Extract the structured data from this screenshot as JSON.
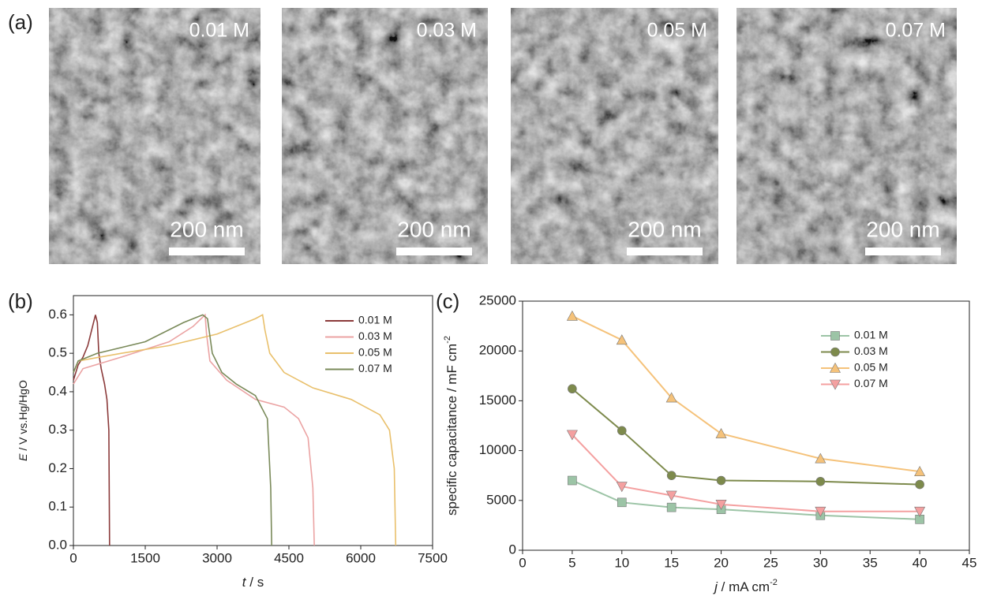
{
  "panel_a": {
    "label": "(a)",
    "images": [
      {
        "concentration": "0.01 M",
        "scale_bar": "200 nm"
      },
      {
        "concentration": "0.03 M",
        "scale_bar": "200 nm"
      },
      {
        "concentration": "0.05 M",
        "scale_bar": "200 nm"
      },
      {
        "concentration": "0.07 M",
        "scale_bar": "200 nm"
      }
    ]
  },
  "chart_data": [
    {
      "type": "line",
      "panel_label": "(b)",
      "xlabel": {
        "symbol": "t",
        "unit": " / s"
      },
      "ylabel": {
        "symbol": "E",
        "unit": " / V vs.Hg/HgO"
      },
      "xlim": [
        0,
        7500
      ],
      "xticks": [
        0,
        1500,
        3000,
        4500,
        6000,
        7500
      ],
      "ylim": [
        0,
        0.65
      ],
      "yticks": [
        {
          "value": 0,
          "label": "0.0"
        },
        0.1,
        0.2,
        0.3,
        0.4,
        0.5,
        0.6
      ],
      "legend": "top-right",
      "series": [
        {
          "name": "0.01 M",
          "color": "#8b3a3a",
          "x": [
            0,
            100,
            200,
            300,
            400,
            460,
            500,
            530,
            580,
            650,
            700,
            740,
            750,
            755
          ],
          "values": [
            0.43,
            0.47,
            0.49,
            0.52,
            0.57,
            0.6,
            0.58,
            0.5,
            0.46,
            0.42,
            0.38,
            0.3,
            0.1,
            0
          ]
        },
        {
          "name": "0.03 M",
          "color": "#eba3a3",
          "x": [
            0,
            200,
            1000,
            2000,
            2500,
            2750,
            2780,
            2850,
            3200,
            3800,
            4400,
            4700,
            4900,
            5000,
            5030
          ],
          "values": [
            0.42,
            0.46,
            0.49,
            0.53,
            0.57,
            0.6,
            0.55,
            0.48,
            0.43,
            0.38,
            0.36,
            0.33,
            0.28,
            0.15,
            0
          ]
        },
        {
          "name": "0.05 M",
          "color": "#e9c06c",
          "x": [
            0,
            100,
            1000,
            2000,
            3000,
            3800,
            3950,
            4000,
            4100,
            4400,
            5000,
            5800,
            6400,
            6600,
            6700,
            6730
          ],
          "values": [
            0.45,
            0.48,
            0.5,
            0.52,
            0.55,
            0.59,
            0.6,
            0.56,
            0.5,
            0.45,
            0.41,
            0.38,
            0.34,
            0.3,
            0.2,
            0
          ]
        },
        {
          "name": "0.07 M",
          "color": "#7a8a5a",
          "x": [
            0,
            100,
            500,
            1500,
            2300,
            2700,
            2800,
            2900,
            3100,
            3400,
            3800,
            4050,
            4120,
            4140
          ],
          "values": [
            0.45,
            0.48,
            0.5,
            0.53,
            0.58,
            0.6,
            0.59,
            0.5,
            0.45,
            0.42,
            0.39,
            0.33,
            0.15,
            0
          ]
        }
      ]
    },
    {
      "type": "line",
      "panel_label": "(c)",
      "xlabel": {
        "symbol": "j",
        "unit": " / mA cm",
        "sup": "-2"
      },
      "ylabel": {
        "symbol": "",
        "unit": "specific capacitance / mF cm",
        "sup": "-2"
      },
      "xlim": [
        0,
        45
      ],
      "xticks": [
        0,
        5,
        10,
        15,
        20,
        25,
        30,
        35,
        40,
        45
      ],
      "ylim": [
        0,
        25000
      ],
      "yticks": [
        0,
        5000,
        10000,
        15000,
        20000,
        25000
      ],
      "legend": "top-right",
      "x": [
        5,
        10,
        15,
        20,
        30,
        40
      ],
      "series": [
        {
          "name": "0.01 M",
          "color": "#9cc4a6",
          "marker": "square",
          "values": [
            7000,
            4800,
            4300,
            4100,
            3500,
            3100
          ]
        },
        {
          "name": "0.03 M",
          "color": "#7d8a4c",
          "marker": "circle",
          "values": [
            16200,
            12000,
            7500,
            7000,
            6900,
            6600
          ]
        },
        {
          "name": "0.05 M",
          "color": "#f5c27a",
          "marker": "triangle-up",
          "values": [
            23500,
            21100,
            15300,
            11700,
            9200,
            7900
          ]
        },
        {
          "name": "0.07 M",
          "color": "#f4a0a0",
          "marker": "triangle-down",
          "values": [
            11600,
            6400,
            5500,
            4600,
            3900,
            3900
          ]
        }
      ]
    }
  ]
}
